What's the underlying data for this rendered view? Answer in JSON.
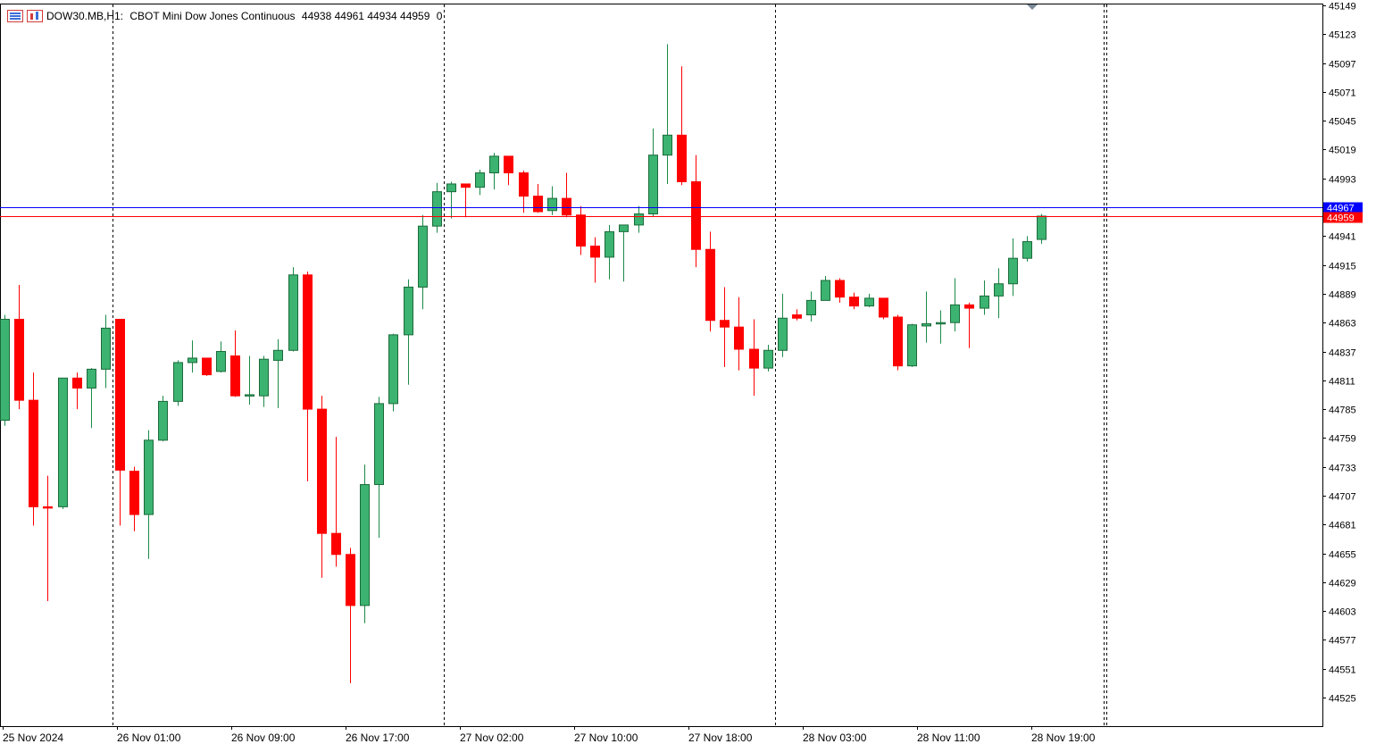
{
  "header": {
    "symbol": "DOW30.MB,H1:",
    "description": "CBOT Mini Dow Jones Continuous",
    "ohlc": "44938 44961 44934 44959",
    "spread": "0"
  },
  "price_lines": {
    "ask": {
      "value": 44967,
      "label": "44967",
      "color": "#0000ff"
    },
    "bid": {
      "value": 44959,
      "label": "44959",
      "color": "#ff0000"
    }
  },
  "colors": {
    "bull": "#26a65b",
    "bear": "#ff0000",
    "bull_body": "#3cb371",
    "grid": "#000000"
  },
  "chart_data": {
    "type": "candlestick",
    "ylim": [
      44505,
      45149
    ],
    "y_ticks": [
      45149,
      45123,
      45097,
      45071,
      45045,
      45019,
      44993,
      44967,
      44941,
      44915,
      44889,
      44863,
      44837,
      44811,
      44785,
      44759,
      44733,
      44707,
      44681,
      44655,
      44629,
      44603,
      44577,
      44551,
      44525
    ],
    "x_labels": [
      "25 Nov 2024",
      "26 Nov 01:00",
      "26 Nov 09:00",
      "26 Nov 17:00",
      "27 Nov 02:00",
      "27 Nov 10:00",
      "27 Nov 18:00",
      "28 Nov 03:00",
      "28 Nov 11:00",
      "28 Nov 19:00"
    ],
    "day_separators_after_index": [
      7,
      30,
      53,
      76
    ],
    "candles": [
      {
        "o": 44775,
        "h": 44870,
        "l": 44770,
        "c": 44866
      },
      {
        "o": 44866,
        "h": 44897,
        "l": 44785,
        "c": 44793
      },
      {
        "o": 44793,
        "h": 44818,
        "l": 44680,
        "c": 44697
      },
      {
        "o": 44697,
        "h": 44725,
        "l": 44612,
        "c": 44696
      },
      {
        "o": 44697,
        "h": 44808,
        "l": 44695,
        "c": 44813
      },
      {
        "o": 44813,
        "h": 44818,
        "l": 44785,
        "c": 44804
      },
      {
        "o": 44804,
        "h": 44822,
        "l": 44768,
        "c": 44821
      },
      {
        "o": 44821,
        "h": 44870,
        "l": 44804,
        "c": 44858
      },
      {
        "o": 44866,
        "h": 44865,
        "l": 44680,
        "c": 44730
      },
      {
        "o": 44729,
        "h": 44733,
        "l": 44675,
        "c": 44690
      },
      {
        "o": 44690,
        "h": 44766,
        "l": 44650,
        "c": 44757
      },
      {
        "o": 44757,
        "h": 44797,
        "l": 44756,
        "c": 44792
      },
      {
        "o": 44792,
        "h": 44829,
        "l": 44788,
        "c": 44827
      },
      {
        "o": 44827,
        "h": 44847,
        "l": 44818,
        "c": 44831
      },
      {
        "o": 44831,
        "h": 44830,
        "l": 44815,
        "c": 44816
      },
      {
        "o": 44819,
        "h": 44846,
        "l": 44818,
        "c": 44837
      },
      {
        "o": 44833,
        "h": 44856,
        "l": 44796,
        "c": 44797
      },
      {
        "o": 44797,
        "h": 44833,
        "l": 44789,
        "c": 44798
      },
      {
        "o": 44797,
        "h": 44833,
        "l": 44787,
        "c": 44830
      },
      {
        "o": 44829,
        "h": 44848,
        "l": 44786,
        "c": 44838
      },
      {
        "o": 44838,
        "h": 44913,
        "l": 44837,
        "c": 44906
      },
      {
        "o": 44906,
        "h": 44909,
        "l": 44720,
        "c": 44785
      },
      {
        "o": 44785,
        "h": 44797,
        "l": 44633,
        "c": 44673
      },
      {
        "o": 44673,
        "h": 44760,
        "l": 44643,
        "c": 44654
      },
      {
        "o": 44654,
        "h": 44660,
        "l": 44538,
        "c": 44608
      },
      {
        "o": 44608,
        "h": 44735,
        "l": 44592,
        "c": 44717
      },
      {
        "o": 44717,
        "h": 44796,
        "l": 44669,
        "c": 44790
      },
      {
        "o": 44790,
        "h": 44853,
        "l": 44783,
        "c": 44852
      },
      {
        "o": 44852,
        "h": 44902,
        "l": 44807,
        "c": 44895
      },
      {
        "o": 44895,
        "h": 44960,
        "l": 44875,
        "c": 44950
      },
      {
        "o": 44950,
        "h": 44989,
        "l": 44944,
        "c": 44981
      },
      {
        "o": 44981,
        "h": 44990,
        "l": 44957,
        "c": 44988
      },
      {
        "o": 44988,
        "h": 44985,
        "l": 44958,
        "c": 44985
      },
      {
        "o": 44985,
        "h": 45001,
        "l": 44978,
        "c": 44998
      },
      {
        "o": 44998,
        "h": 45016,
        "l": 44983,
        "c": 45013
      },
      {
        "o": 45013,
        "h": 45013,
        "l": 44987,
        "c": 44998
      },
      {
        "o": 44998,
        "h": 45000,
        "l": 44962,
        "c": 44977
      },
      {
        "o": 44977,
        "h": 44988,
        "l": 44962,
        "c": 44963
      },
      {
        "o": 44964,
        "h": 44986,
        "l": 44960,
        "c": 44975
      },
      {
        "o": 44975,
        "h": 44998,
        "l": 44958,
        "c": 44960
      },
      {
        "o": 44960,
        "h": 44968,
        "l": 44924,
        "c": 44932
      },
      {
        "o": 44932,
        "h": 44940,
        "l": 44899,
        "c": 44922
      },
      {
        "o": 44922,
        "h": 44951,
        "l": 44902,
        "c": 44945
      },
      {
        "o": 44945,
        "h": 44950,
        "l": 44900,
        "c": 44951
      },
      {
        "o": 44951,
        "h": 44968,
        "l": 44944,
        "c": 44961
      },
      {
        "o": 44961,
        "h": 45038,
        "l": 44959,
        "c": 45014
      },
      {
        "o": 45014,
        "h": 45114,
        "l": 44988,
        "c": 45032
      },
      {
        "o": 45032,
        "h": 45094,
        "l": 44987,
        "c": 44990
      },
      {
        "o": 44990,
        "h": 45014,
        "l": 44913,
        "c": 44929
      },
      {
        "o": 44929,
        "h": 44945,
        "l": 44855,
        "c": 44865
      },
      {
        "o": 44865,
        "h": 44895,
        "l": 44823,
        "c": 44859
      },
      {
        "o": 44859,
        "h": 44886,
        "l": 44820,
        "c": 44839
      },
      {
        "o": 44839,
        "h": 44866,
        "l": 44797,
        "c": 44822
      },
      {
        "o": 44822,
        "h": 44843,
        "l": 44819,
        "c": 44838
      },
      {
        "o": 44838,
        "h": 44889,
        "l": 44832,
        "c": 44867
      },
      {
        "o": 44870,
        "h": 44875,
        "l": 44865,
        "c": 44867
      },
      {
        "o": 44870,
        "h": 44891,
        "l": 44864,
        "c": 44883
      },
      {
        "o": 44883,
        "h": 44905,
        "l": 44883,
        "c": 44901
      },
      {
        "o": 44901,
        "h": 44903,
        "l": 44881,
        "c": 44886
      },
      {
        "o": 44886,
        "h": 44890,
        "l": 44875,
        "c": 44878
      },
      {
        "o": 44878,
        "h": 44889,
        "l": 44877,
        "c": 44885
      },
      {
        "o": 44885,
        "h": 44885,
        "l": 44866,
        "c": 44868
      },
      {
        "o": 44868,
        "h": 44870,
        "l": 44820,
        "c": 44824
      },
      {
        "o": 44824,
        "h": 44862,
        "l": 44823,
        "c": 44861
      },
      {
        "o": 44860,
        "h": 44891,
        "l": 44845,
        "c": 44862
      },
      {
        "o": 44862,
        "h": 44874,
        "l": 44844,
        "c": 44863
      },
      {
        "o": 44863,
        "h": 44903,
        "l": 44855,
        "c": 44879
      },
      {
        "o": 44879,
        "h": 44881,
        "l": 44840,
        "c": 44876
      },
      {
        "o": 44876,
        "h": 44901,
        "l": 44870,
        "c": 44887
      },
      {
        "o": 44887,
        "h": 44912,
        "l": 44867,
        "c": 44898
      },
      {
        "o": 44898,
        "h": 44939,
        "l": 44887,
        "c": 44921
      },
      {
        "o": 44921,
        "h": 44941,
        "l": 44918,
        "c": 44936
      },
      {
        "o": 44938,
        "h": 44961,
        "l": 44934,
        "c": 44959
      }
    ]
  }
}
